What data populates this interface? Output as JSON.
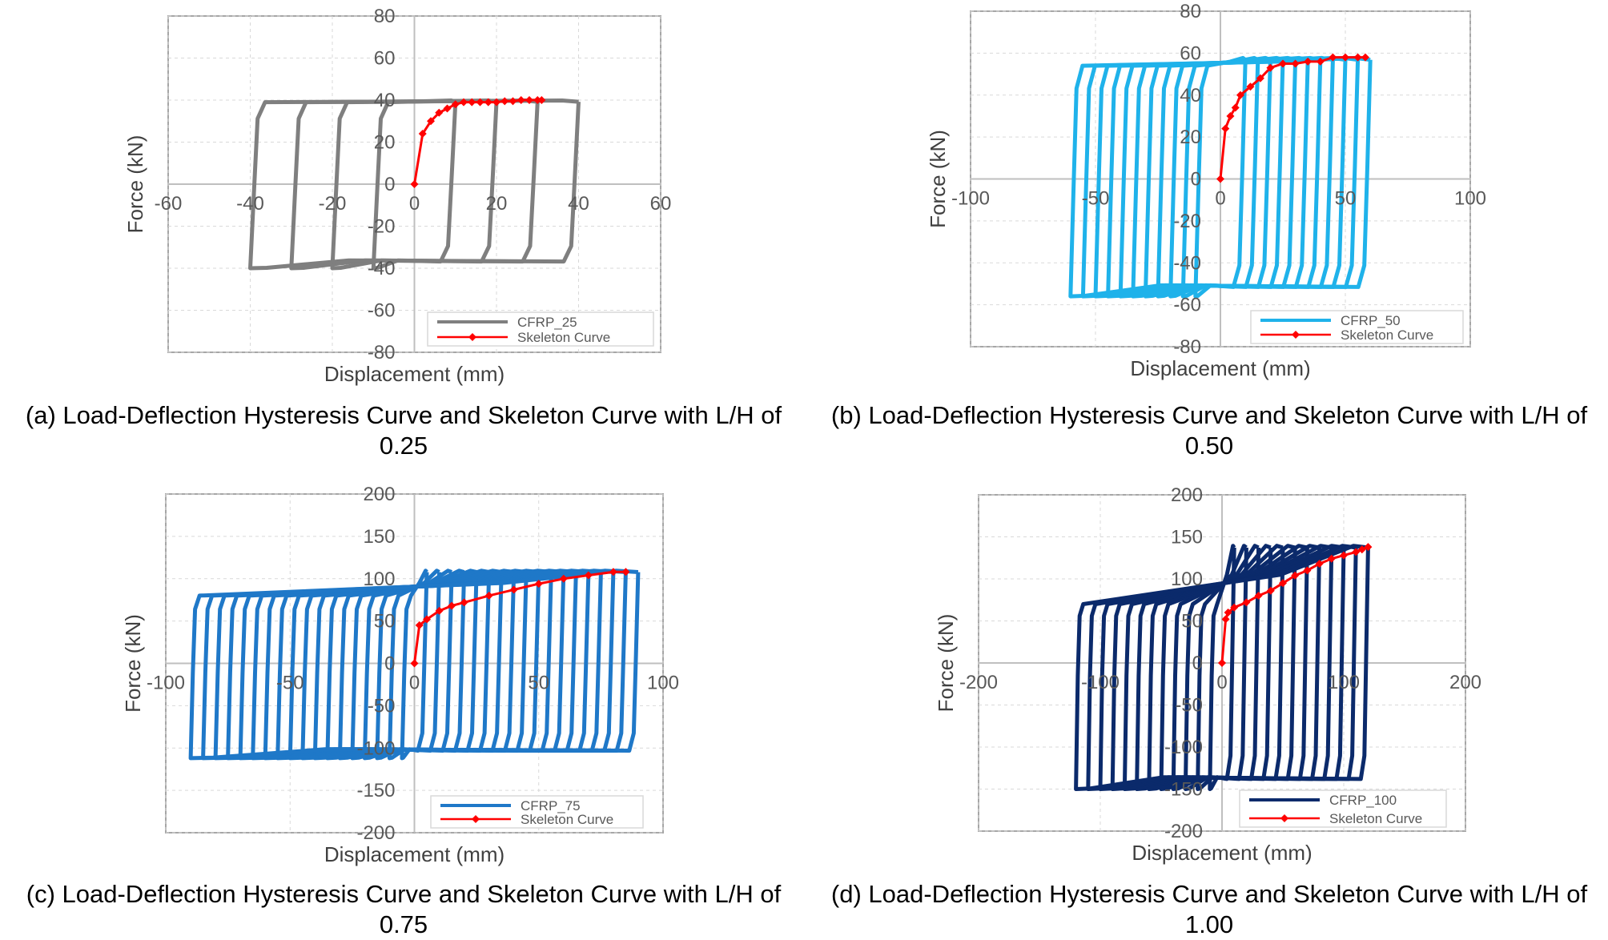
{
  "colors": {
    "skeleton": "#ff0000",
    "skeleton_marker": "#ff0000",
    "axis": "#bfbfbf",
    "grid": "#d9d9d9",
    "frame": "#a6a6a6"
  },
  "chart_data": [
    {
      "type": "line",
      "caption": "(a) Load-Deflection Hysteresis Curve and Skeleton Curve with L/H of 0.25",
      "xlabel": "Displacement (mm)",
      "ylabel": "Force (kN)",
      "xlim": [
        -60,
        60
      ],
      "ylim": [
        -80,
        80
      ],
      "xticks": [
        -60,
        -40,
        -20,
        0,
        20,
        40,
        60
      ],
      "yticks": [
        -80,
        -60,
        -40,
        -20,
        0,
        20,
        40,
        60,
        80
      ],
      "xtick_labels": [
        "-60",
        "-40",
        "-20",
        "0",
        "20",
        "40",
        "60"
      ],
      "ytick_labels": [
        "-80",
        "-60",
        "-40",
        "-20",
        "0",
        "20",
        "40",
        "60",
        "80"
      ],
      "grid": true,
      "legend_position": "bottom-right",
      "series": [
        {
          "name": "CFRP_25",
          "color": "#7f7f7f",
          "kind": "hysteresis",
          "amplitudes": [
            10,
            20,
            30,
            40
          ],
          "elastic_limit": 3,
          "force_yield": 39,
          "force_peak": 40,
          "force_neg": -40
        },
        {
          "name": "Skeleton Curve",
          "color": "#ff0000",
          "kind": "skeleton",
          "x": [
            0,
            2,
            4,
            6,
            8,
            10,
            12,
            14,
            16,
            18,
            20,
            22,
            24,
            26,
            28,
            30,
            31
          ],
          "y": [
            0,
            24,
            30,
            34,
            36,
            38,
            39,
            39,
            39,
            39,
            39,
            39.5,
            39.5,
            40,
            40,
            40,
            40
          ]
        }
      ]
    },
    {
      "type": "line",
      "caption": "(b) Load-Deflection Hysteresis Curve and Skeleton Curve with L/H of 0.50",
      "xlabel": "Displacement (mm)",
      "ylabel": "Force (kN)",
      "xlim": [
        -100,
        100
      ],
      "ylim": [
        -80,
        80
      ],
      "xticks": [
        -100,
        -50,
        0,
        50,
        100
      ],
      "yticks": [
        -80,
        -60,
        -40,
        -20,
        0,
        20,
        40,
        60,
        80
      ],
      "xtick_labels": [
        "-100",
        "-50",
        "0",
        "50",
        "100"
      ],
      "ytick_labels": [
        "-80",
        "-60",
        "-40",
        "-20",
        "0",
        "20",
        "40",
        "60",
        "80"
      ],
      "grid": true,
      "legend_position": "bottom-right",
      "series": [
        {
          "name": "CFRP_50",
          "color": "#1fb2ea",
          "kind": "hysteresis",
          "amplitudes": [
            10,
            15,
            20,
            25,
            30,
            35,
            40,
            45,
            50,
            55,
            60
          ],
          "elastic_limit": 4,
          "force_yield": 54,
          "force_peak": 58,
          "force_neg": -56
        },
        {
          "name": "Skeleton Curve",
          "color": "#ff0000",
          "kind": "skeleton",
          "x": [
            0,
            2,
            4,
            6,
            8,
            12,
            16,
            20,
            25,
            30,
            35,
            40,
            45,
            50,
            55,
            58
          ],
          "y": [
            0,
            24,
            30,
            34,
            40,
            44,
            48,
            53,
            55,
            55,
            56,
            56,
            58,
            58,
            58,
            58
          ]
        }
      ]
    },
    {
      "type": "line",
      "caption": "(c) Load-Deflection Hysteresis Curve and Skeleton Curve with L/H of 0.75",
      "xlabel": "Displacement (mm)",
      "ylabel": "Force (kN)",
      "xlim": [
        -100,
        100
      ],
      "ylim": [
        -200,
        200
      ],
      "xticks": [
        -100,
        -50,
        0,
        50,
        100
      ],
      "yticks": [
        -200,
        -150,
        -100,
        -50,
        0,
        50,
        100,
        150,
        200
      ],
      "xtick_labels": [
        "-100",
        "-50",
        "0",
        "50",
        "100"
      ],
      "ytick_labels": [
        "-200",
        "-150",
        "-100",
        "-50",
        "0",
        "50",
        "100",
        "150",
        "200"
      ],
      "grid": true,
      "legend_position": "bottom-right",
      "series": [
        {
          "name": "CFRP_75",
          "color": "#1f78c8",
          "kind": "hysteresis",
          "amplitudes": [
            5,
            10,
            15,
            20,
            25,
            30,
            35,
            40,
            45,
            50,
            55,
            60,
            65,
            70,
            75,
            80,
            85,
            90
          ],
          "elastic_limit": 3,
          "force_yield": 80,
          "force_peak": 110,
          "force_neg": -112
        },
        {
          "name": "Skeleton Curve",
          "color": "#ff0000",
          "kind": "skeleton",
          "x": [
            0,
            2,
            5,
            10,
            15,
            20,
            30,
            40,
            50,
            60,
            70,
            80,
            85
          ],
          "y": [
            0,
            45,
            52,
            62,
            68,
            72,
            80,
            87,
            94,
            100,
            104,
            108,
            108
          ]
        }
      ]
    },
    {
      "type": "line",
      "caption": "(d) Load-Deflection Hysteresis Curve and Skeleton Curve with L/H of 1.00",
      "xlabel": "Displacement (mm)",
      "ylabel": "Force (kN)",
      "xlim": [
        -200,
        200
      ],
      "ylim": [
        -200,
        200
      ],
      "xticks": [
        -200,
        -100,
        0,
        100,
        200
      ],
      "yticks": [
        -200,
        -150,
        -100,
        -50,
        0,
        50,
        100,
        150,
        200
      ],
      "xtick_labels": [
        "-200",
        "-100",
        "0",
        "100",
        "200"
      ],
      "ytick_labels": [
        "-200",
        "-150",
        "-100",
        "-50",
        "0",
        "50",
        "100",
        "150",
        "200"
      ],
      "grid": true,
      "legend_position": "bottom-right",
      "series": [
        {
          "name": "CFRP_100",
          "color": "#0b2a6b",
          "kind": "hysteresis",
          "amplitudes": [
            10,
            20,
            30,
            40,
            50,
            60,
            70,
            80,
            90,
            100,
            110,
            120
          ],
          "elastic_limit": 5,
          "force_yield": 70,
          "force_peak": 140,
          "force_neg": -150
        },
        {
          "name": "Skeleton Curve",
          "color": "#ff0000",
          "kind": "skeleton",
          "x": [
            0,
            3,
            5,
            10,
            20,
            30,
            40,
            50,
            60,
            70,
            80,
            90,
            100,
            110,
            115,
            120
          ],
          "y": [
            0,
            52,
            60,
            66,
            72,
            80,
            86,
            95,
            104,
            110,
            118,
            124,
            128,
            132,
            135,
            138
          ]
        }
      ]
    }
  ]
}
